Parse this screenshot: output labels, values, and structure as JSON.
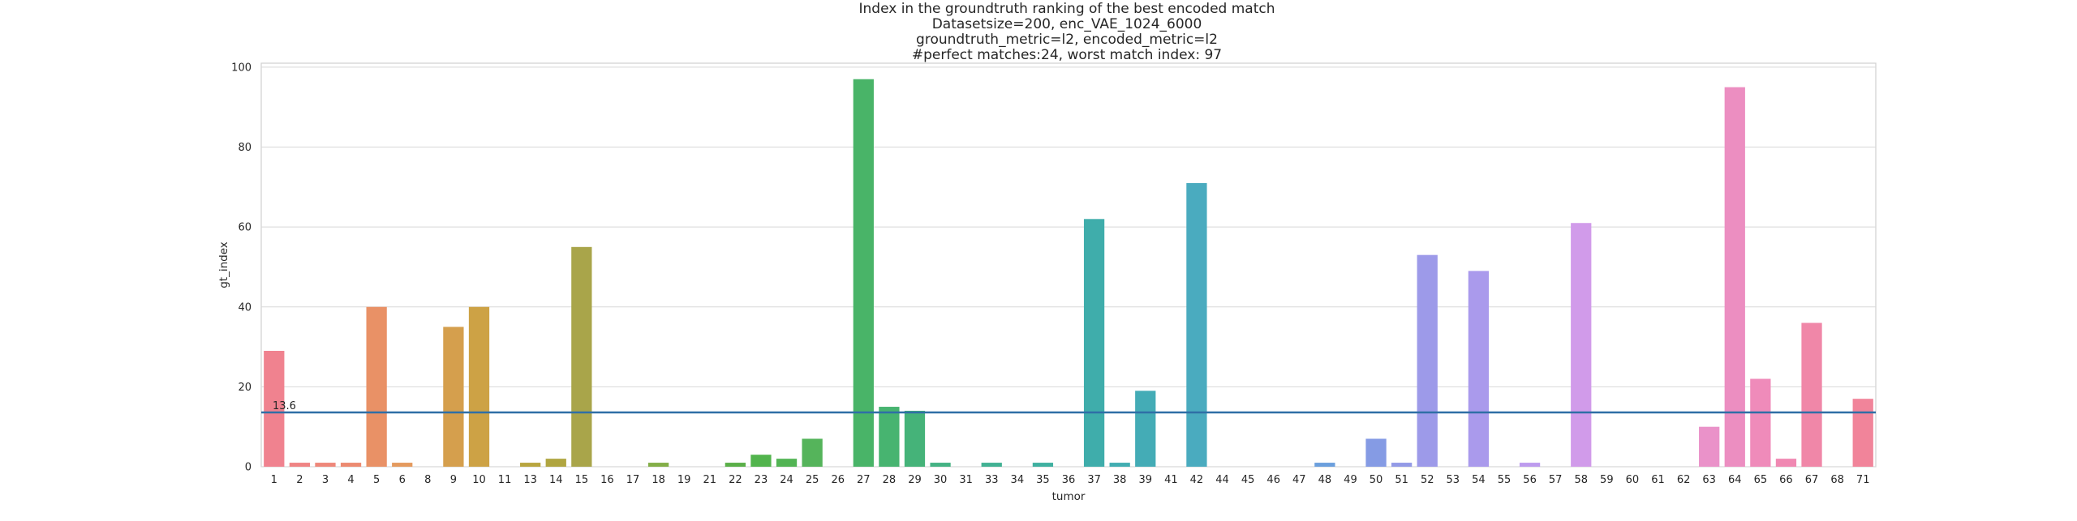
{
  "chart_data": {
    "type": "bar",
    "title_lines": [
      "Index in the groundtruth ranking of the best encoded match",
      "Datasetsize=200, enc_VAE_1024_6000",
      "groundtruth_metric=l2, encoded_metric=l2",
      "#perfect matches:24, worst match index: 97"
    ],
    "xlabel": "tumor",
    "ylabel": "gt_index",
    "ylim": [
      0,
      101
    ],
    "yticks": [
      0,
      20,
      40,
      60,
      80,
      100
    ],
    "grid": true,
    "categories": [
      "1",
      "2",
      "3",
      "4",
      "5",
      "6",
      "8",
      "9",
      "10",
      "11",
      "13",
      "14",
      "15",
      "16",
      "17",
      "18",
      "19",
      "21",
      "22",
      "23",
      "24",
      "25",
      "26",
      "27",
      "28",
      "29",
      "30",
      "31",
      "33",
      "34",
      "35",
      "36",
      "37",
      "38",
      "39",
      "41",
      "42",
      "44",
      "45",
      "46",
      "47",
      "48",
      "49",
      "50",
      "51",
      "52",
      "53",
      "54",
      "55",
      "56",
      "57",
      "58",
      "59",
      "60",
      "61",
      "62",
      "63",
      "64",
      "65",
      "66",
      "67",
      "68",
      "71"
    ],
    "values": [
      29,
      1,
      1,
      1,
      40,
      1,
      0,
      35,
      40,
      0,
      1,
      2,
      55,
      0,
      0,
      1,
      0,
      0,
      1,
      3,
      2,
      7,
      0,
      97,
      15,
      14,
      1,
      0,
      1,
      0,
      1,
      0,
      62,
      1,
      19,
      0,
      71,
      0,
      0,
      0,
      0,
      1,
      0,
      7,
      1,
      53,
      0,
      49,
      0,
      1,
      0,
      61,
      0,
      0,
      0,
      0,
      10,
      95,
      22,
      2,
      36,
      0,
      17
    ],
    "colors": [
      "#f0828f",
      "#ef8484",
      "#ee877a",
      "#ec8a70",
      "#e99166",
      "#e49a5e",
      "#de9f55",
      "#d59f4d",
      "#cda245",
      "#c2a543",
      "#b8a53f",
      "#b0a540",
      "#a9a54a",
      "#9da74a",
      "#91ab48",
      "#83ae47",
      "#75b146",
      "#66b44a",
      "#5aaf48",
      "#52b44d",
      "#52b454",
      "#55b45b",
      "#4db461",
      "#49b468",
      "#47b470",
      "#45b379",
      "#44b283",
      "#43b18c",
      "#41b193",
      "#40b09a",
      "#3fb0a0",
      "#3fafa6",
      "#3fadab",
      "#41adb1",
      "#44acb6",
      "#47abbb",
      "#4aabbf",
      "#4fa8c4",
      "#54a6cb",
      "#5aa4d2",
      "#62a1d8",
      "#6b9fdd",
      "#769ce1",
      "#859be4",
      "#939ae6",
      "#9d9ae9",
      "#a59aec",
      "#aa9aec",
      "#b49bed",
      "#bd9bee",
      "#c89bee",
      "#d19bea",
      "#d89be6",
      "#de98e1",
      "#e297da",
      "#e696d0",
      "#ea92c9",
      "#ec8ec1",
      "#ef8bba",
      "#f088b2",
      "#f087a8",
      "#f085a1",
      "#f1849a"
    ],
    "mean_line": {
      "value": 13.6,
      "label": "13.6",
      "color": "#2f6fa6"
    },
    "bar_color_note": "husl palette"
  }
}
